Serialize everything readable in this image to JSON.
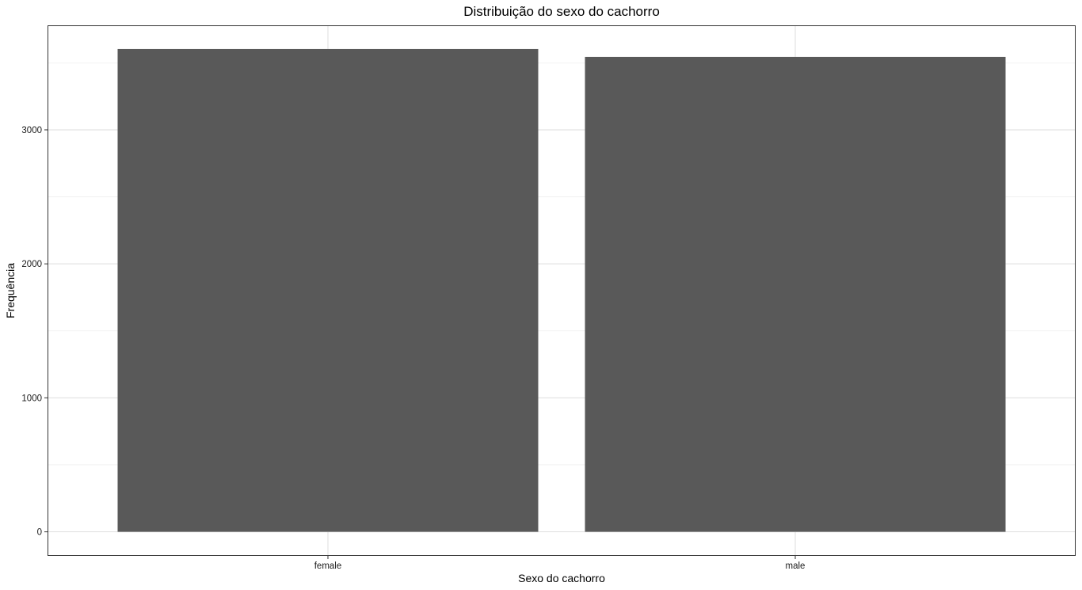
{
  "chart_data": {
    "type": "bar",
    "title": "Distribuição do sexo do cachorro",
    "xlabel": "Sexo do cachorro",
    "ylabel": "Frequência",
    "categories": [
      "female",
      "male"
    ],
    "values": [
      3603,
      3544
    ],
    "ylim": [
      -180,
      3780
    ],
    "yticks": [
      0,
      1000,
      2000,
      3000
    ],
    "ytick_labels": [
      "0",
      "1000",
      "2000",
      "3000"
    ],
    "grid": true,
    "legend": "none",
    "colors": {
      "bar": "#595959",
      "grid_major": "#dedede",
      "grid_minor": "#efefef",
      "panel_border": "#333333",
      "background": "#ffffff"
    }
  }
}
